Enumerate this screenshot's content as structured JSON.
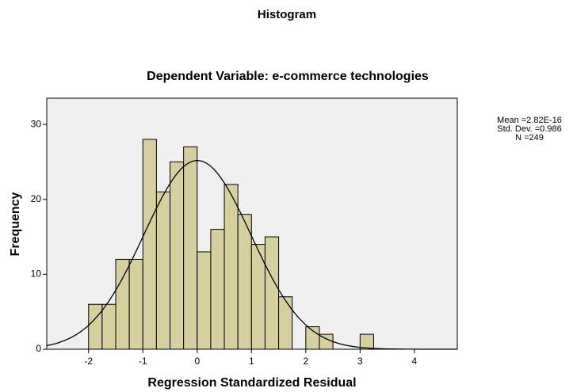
{
  "chart_data": {
    "type": "histogram",
    "title": "Histogram",
    "subtitle": "Dependent Variable: e-commerce technologies",
    "x_label": "Regression Standardized Residual",
    "y_label": "Frequency",
    "bins": [
      -2,
      -1.75,
      -1.5,
      -1.25,
      -1,
      -0.75,
      -0.5,
      -0.25,
      0,
      0.25,
      0.5,
      0.75,
      1,
      1.25,
      1.5,
      1.75,
      2,
      2.25,
      2.5,
      2.75,
      3,
      3.25
    ],
    "counts": [
      6,
      6,
      12,
      12,
      28,
      21,
      25,
      27,
      13,
      16,
      22,
      18,
      14,
      15,
      7,
      0,
      3,
      2,
      0,
      0,
      2
    ],
    "color": "#d6d09e",
    "xlim": [
      -2.77,
      4.79
    ],
    "ylim": [
      0,
      33.5
    ],
    "xticks": [
      -2,
      -1,
      0,
      1,
      2,
      3,
      4
    ],
    "yticks": [
      0,
      10,
      20,
      30
    ],
    "annotations": [
      "Mean =2.82E-16",
      "Std. Dev. =0.986",
      "N =249"
    ]
  }
}
